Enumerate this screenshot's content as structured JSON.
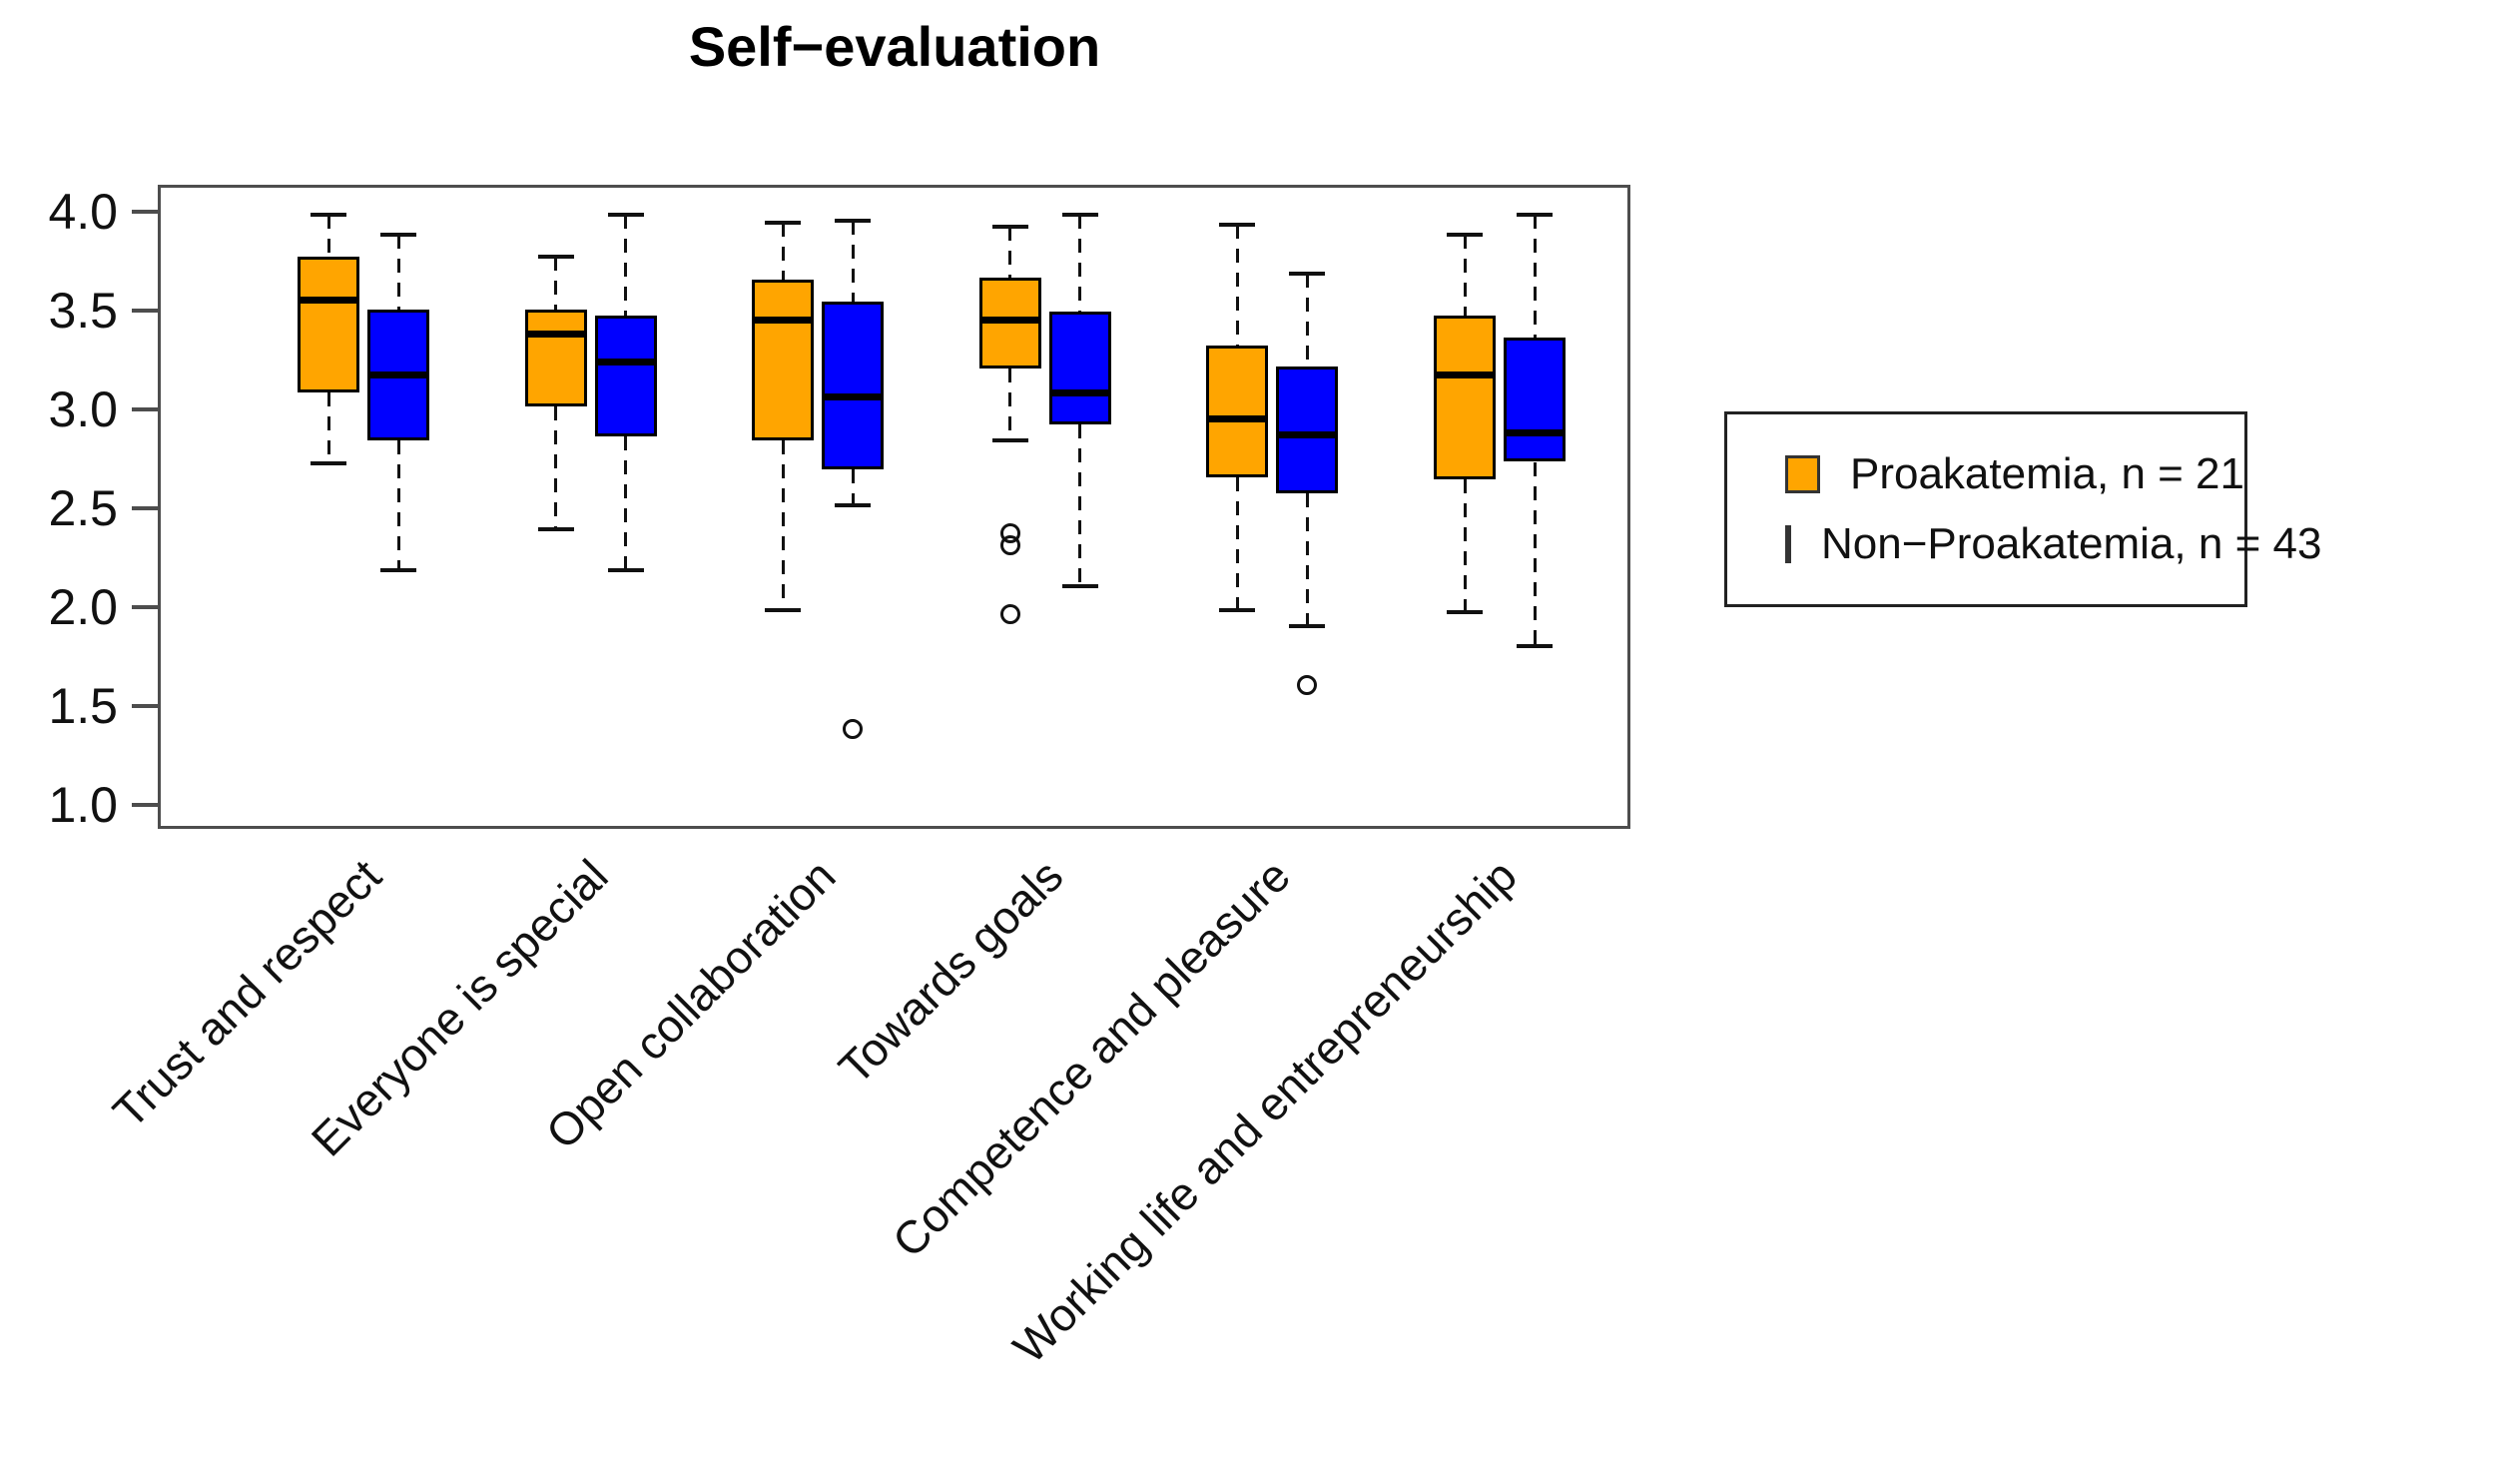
{
  "page": {
    "background": "#ffffff"
  },
  "chart_data": {
    "type": "box",
    "title": "Self−evaluation",
    "grid": false,
    "y_axis": {
      "min": 1.0,
      "max": 4.0,
      "tick_values": [
        4.0,
        3.5,
        3.0,
        2.5,
        2.0,
        1.5,
        1.0
      ],
      "tick_labels": [
        "4.0",
        "3.5",
        "3.0",
        "2.5",
        "2.0",
        "1.5",
        "1.0"
      ]
    },
    "categories": [
      "Trust and respect",
      "Everyone is special",
      "Open collaboration",
      "Towards goals",
      "Competence and pleasure",
      "Working life and entrepreneurship"
    ],
    "legend": {
      "position": "right",
      "entries": [
        {
          "label": "Proakatemia, n = 21",
          "color": "#FFA500"
        },
        {
          "label": "Non−Proakatemia, n = 43",
          "color": "#0000FF"
        }
      ]
    },
    "series": [
      {
        "name": "Proakatemia, n = 21",
        "n": 21,
        "color": "#FFA500",
        "boxes": [
          {
            "category": "Trust and respect",
            "low": 2.74,
            "q1": 3.1,
            "median": 3.57,
            "q3": 3.79,
            "high": 4.0,
            "outliers": []
          },
          {
            "category": "Everyone is special",
            "low": 2.41,
            "q1": 3.03,
            "median": 3.4,
            "q3": 3.52,
            "high": 3.79,
            "outliers": []
          },
          {
            "category": "Open collaboration",
            "low": 2.0,
            "q1": 2.86,
            "median": 3.47,
            "q3": 3.67,
            "high": 3.96,
            "outliers": []
          },
          {
            "category": "Towards goals",
            "low": 2.86,
            "q1": 3.22,
            "median": 3.47,
            "q3": 3.68,
            "high": 3.94,
            "outliers": [
              2.39,
              2.33,
              1.98
            ]
          },
          {
            "category": "Competence and pleasure",
            "low": 2.0,
            "q1": 2.67,
            "median": 2.97,
            "q3": 3.34,
            "high": 3.95,
            "outliers": []
          },
          {
            "category": "Working life and entrepreneurship",
            "low": 1.99,
            "q1": 2.66,
            "median": 3.19,
            "q3": 3.49,
            "high": 3.9,
            "outliers": []
          }
        ]
      },
      {
        "name": "Non−Proakatemia, n = 43",
        "n": 43,
        "color": "#0000FF",
        "boxes": [
          {
            "category": "Trust and respect",
            "low": 2.2,
            "q1": 2.86,
            "median": 3.19,
            "q3": 3.52,
            "high": 3.9,
            "outliers": []
          },
          {
            "category": "Everyone is special",
            "low": 2.2,
            "q1": 2.88,
            "median": 3.26,
            "q3": 3.49,
            "high": 4.0,
            "outliers": []
          },
          {
            "category": "Open collaboration",
            "low": 2.53,
            "q1": 2.71,
            "median": 3.08,
            "q3": 3.56,
            "high": 3.97,
            "outliers": [
              1.4
            ]
          },
          {
            "category": "Towards goals",
            "low": 2.12,
            "q1": 2.94,
            "median": 3.1,
            "q3": 3.51,
            "high": 4.0,
            "outliers": []
          },
          {
            "category": "Competence and pleasure",
            "low": 1.92,
            "q1": 2.59,
            "median": 2.89,
            "q3": 3.23,
            "high": 3.7,
            "outliers": [
              1.62
            ]
          },
          {
            "category": "Working life and entrepreneurship",
            "low": 1.82,
            "q1": 2.75,
            "median": 2.9,
            "q3": 3.38,
            "high": 4.0,
            "outliers": []
          }
        ]
      }
    ]
  }
}
